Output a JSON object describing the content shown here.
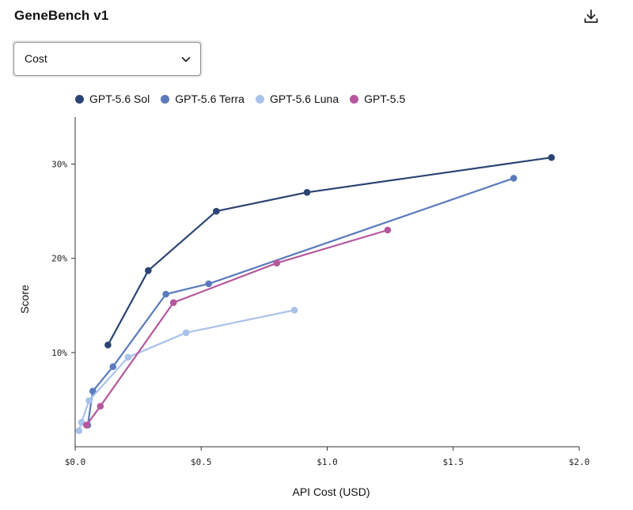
{
  "header": {
    "title": "GeneBench v1",
    "download_icon": "download-icon"
  },
  "metric_select": {
    "value": "Cost",
    "icon": "chevron-down-icon"
  },
  "chart_data": {
    "type": "line",
    "xlabel": "API Cost (USD)",
    "ylabel": "Score",
    "xlim": [
      0,
      2.0
    ],
    "ylim": [
      0,
      35
    ],
    "x_ticks": [
      0.0,
      0.5,
      1.0,
      1.5,
      2.0
    ],
    "x_tick_labels": [
      "$0.0",
      "$0.5",
      "$1.0",
      "$1.5",
      "$2.0"
    ],
    "y_ticks": [
      10,
      20,
      30
    ],
    "y_tick_labels": [
      "10%",
      "20%",
      "30%"
    ],
    "grid": false,
    "legend_position": "top-left",
    "series": [
      {
        "name": "GPT-5.6 Sol",
        "color": "#2b4474",
        "points": [
          [
            0.13,
            10.8
          ],
          [
            0.29,
            18.7
          ],
          [
            0.56,
            25.0
          ],
          [
            0.92,
            27.0
          ],
          [
            1.89,
            30.7
          ]
        ]
      },
      {
        "name": "GPT-5.6 Terra",
        "color": "#5a7bbd",
        "points": [
          [
            0.05,
            2.3
          ],
          [
            0.07,
            5.9
          ],
          [
            0.15,
            8.5
          ],
          [
            0.36,
            16.2
          ],
          [
            0.53,
            17.3
          ],
          [
            1.74,
            28.5
          ]
        ]
      },
      {
        "name": "GPT-5.6 Luna",
        "color": "#a9c2ec",
        "points": [
          [
            0.015,
            1.7
          ],
          [
            0.025,
            2.6
          ],
          [
            0.055,
            4.9
          ],
          [
            0.21,
            9.5
          ],
          [
            0.44,
            12.1
          ],
          [
            0.87,
            14.5
          ]
        ]
      },
      {
        "name": "GPT-5.5",
        "color": "#b5579c",
        "points": [
          [
            0.045,
            2.3
          ],
          [
            0.1,
            4.3
          ],
          [
            0.39,
            15.3
          ],
          [
            0.8,
            19.5
          ],
          [
            1.24,
            23.0
          ]
        ]
      }
    ]
  }
}
